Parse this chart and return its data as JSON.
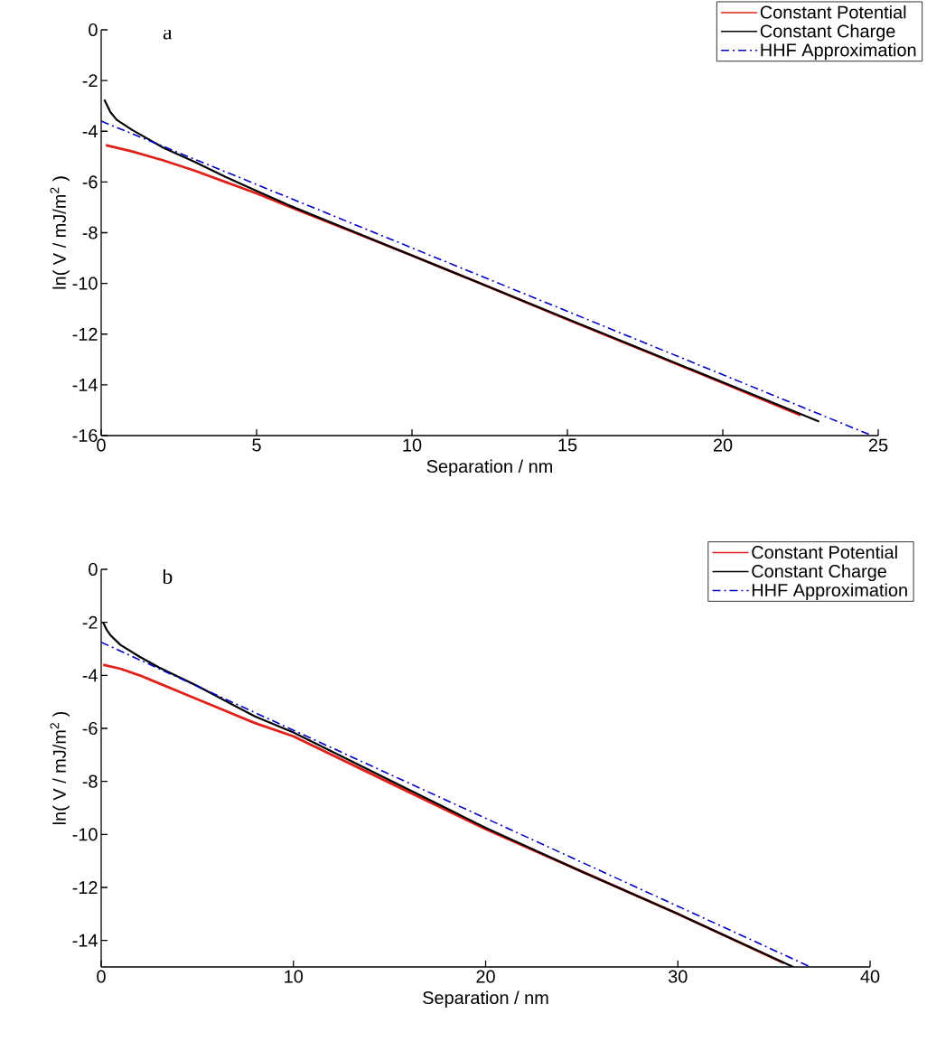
{
  "chart_data": [
    {
      "type": "line",
      "xlabel": "Separation / nm",
      "ylabel": "ln( V / mJ/m$^{2}$ )",
      "annotations": [
        "a"
      ],
      "legend": "top right",
      "grid": false,
      "xlim": [
        0,
        25
      ],
      "xticks": [
        0,
        5,
        10,
        15,
        20,
        25
      ],
      "ylim": [
        -16,
        0
      ],
      "yticks": [
        0,
        -2,
        -4,
        -6,
        -8,
        -10,
        -12,
        -14,
        -16
      ],
      "series": [
        {
          "name": "Constant Potential",
          "color": "#e0201b",
          "line_style": "solid",
          "x": [
            0.15,
            1,
            2,
            3,
            4,
            5,
            6,
            8,
            10,
            12,
            15,
            18,
            20,
            22.5
          ],
          "values": [
            -4.55,
            -4.8,
            -5.15,
            -5.55,
            -6.0,
            -6.45,
            -6.95,
            -7.92,
            -8.9,
            -9.9,
            -11.42,
            -12.92,
            -13.92,
            -15.2
          ]
        },
        {
          "name": "Constant Charge",
          "color": "#000000",
          "line_style": "solid",
          "x": [
            0.1,
            0.3,
            0.5,
            1,
            1.5,
            2,
            3,
            4,
            5,
            6,
            8,
            10,
            12,
            15,
            18,
            20,
            23.1
          ],
          "values": [
            -2.75,
            -3.25,
            -3.55,
            -3.95,
            -4.3,
            -4.65,
            -5.2,
            -5.8,
            -6.35,
            -6.9,
            -7.9,
            -8.9,
            -9.9,
            -11.4,
            -12.9,
            -13.9,
            -15.45
          ]
        },
        {
          "name": "HHF Approximation",
          "color": "#0000c0",
          "line_style": "dashdot",
          "x": [
            0,
            24.8
          ],
          "values": [
            -3.6,
            -16
          ]
        }
      ]
    },
    {
      "type": "line",
      "xlabel": "Separation / nm",
      "ylabel": "ln( V / mJ/m$^{2}$ )",
      "annotations": [
        "b"
      ],
      "legend": "top right",
      "grid": false,
      "xlim": [
        0,
        40
      ],
      "xticks": [
        0,
        10,
        20,
        30,
        40
      ],
      "ylim": [
        -15,
        0
      ],
      "yticks": [
        0,
        -2,
        -4,
        -6,
        -8,
        -10,
        -12,
        -14
      ],
      "series": [
        {
          "name": "Constant Potential",
          "color": "#e0201b",
          "line_style": "solid",
          "x": [
            0.1,
            1,
            2,
            3,
            5,
            8,
            10,
            15,
            20,
            25,
            30,
            35.5
          ],
          "values": [
            -3.6,
            -3.75,
            -4.0,
            -4.3,
            -4.9,
            -5.8,
            -6.3,
            -8.05,
            -9.8,
            -11.4,
            -13.0,
            -14.85
          ]
        },
        {
          "name": "Constant Charge",
          "color": "#000000",
          "line_style": "solid",
          "x": [
            0.1,
            0.3,
            0.5,
            1,
            2,
            3,
            5,
            8,
            10,
            15,
            20,
            25,
            30,
            36
          ],
          "values": [
            -2.0,
            -2.3,
            -2.5,
            -2.85,
            -3.3,
            -3.7,
            -4.4,
            -5.55,
            -6.15,
            -7.95,
            -9.75,
            -11.4,
            -13.0,
            -15.0
          ]
        },
        {
          "name": "HHF Approximation",
          "color": "#0000c0",
          "line_style": "dashdot",
          "x": [
            0,
            36.9
          ],
          "values": [
            -2.75,
            -15
          ]
        }
      ]
    }
  ]
}
